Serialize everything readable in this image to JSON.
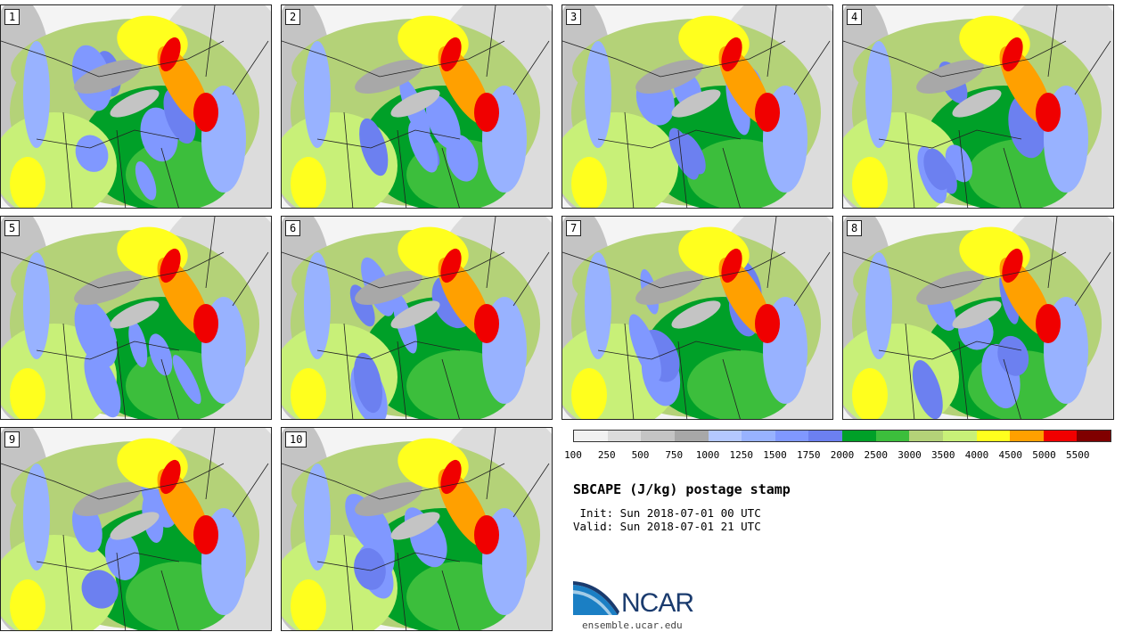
{
  "members": [
    "1",
    "2",
    "3",
    "4",
    "5",
    "6",
    "7",
    "8",
    "9",
    "10"
  ],
  "colorbar": {
    "colors": [
      "#f2f2f2",
      "#dcdcdc",
      "#c4c4c4",
      "#a8a8a8",
      "#b4c8ff",
      "#98b2ff",
      "#8098ff",
      "#6c80f0",
      "#00a028",
      "#3cbe3c",
      "#b4d278",
      "#c8f078",
      "#ffff1e",
      "#ffa000",
      "#f00000",
      "#800000"
    ],
    "ticks": [
      "100",
      "250",
      "500",
      "750",
      "1000",
      "1250",
      "1500",
      "1750",
      "2000",
      "2500",
      "3000",
      "3500",
      "4000",
      "4500",
      "5000",
      "5500"
    ]
  },
  "title": "SBCAPE (J/kg) postage stamp",
  "init": " Init: Sun 2018-07-01 00 UTC",
  "valid": "Valid: Sun 2018-07-01 21 UTC",
  "logo": {
    "name": "ncar-logo",
    "text": "NCAR"
  },
  "url": "ensemble.ucar.edu"
}
